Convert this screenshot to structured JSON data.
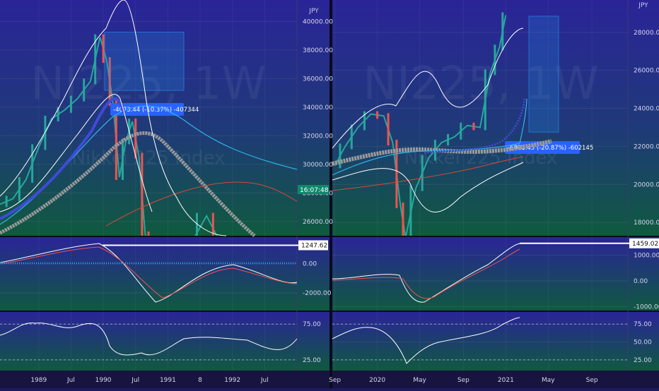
{
  "colors": {
    "bg_top": "#2b2399",
    "bg_bottom": "#0f5a3f",
    "candle_up": "#26a69a",
    "candle_down": "#ef5350",
    "bollinger": "#ffffff",
    "ma_blue": "#3f4bd6",
    "ma_gray": "#9a9a9a",
    "ma_red": "#d9463b",
    "ma_cyan": "#2fb3e6",
    "macd_hist": "#2196f3",
    "rsi_line": "#ffffff",
    "rsi_over": "#f44336",
    "rsi_under": "#4caf50",
    "label_bg": "#2962ff",
    "time_label_bg": "#0c8a6b"
  },
  "watermark": {
    "left": "NI225, 1W",
    "left_sub": "Nikkei 225 Index",
    "right": "NI225, 1W",
    "right_sub": "Nikkei 225 Index"
  },
  "chart_data": [
    {
      "type": "line",
      "panel": "left-price",
      "currency_label": "JPY",
      "ylim": [
        25000,
        41500
      ],
      "y_ticks": [
        "40000.00",
        "38000.00",
        "36000.00",
        "34000.00",
        "32000.00",
        "30000.00",
        "28000.00",
        "26000.00"
      ],
      "y_tick_values": [
        40000,
        38000,
        36000,
        34000,
        32000,
        30000,
        28000,
        26000
      ],
      "x_ticks": [
        "1989",
        "Jul",
        "1990",
        "Jul",
        "1991",
        "8",
        "1992",
        "Jul"
      ],
      "x_tick_values": [
        1989.0,
        1989.5,
        1990.0,
        1990.5,
        1991.0,
        1991.5,
        1992.0,
        1992.5
      ],
      "xlim": [
        1988.4,
        1993.0
      ],
      "series": [
        {
          "name": "",
          "x": [
            1988.4,
            1988.6,
            1988.8,
            1989.0,
            1989.2,
            1989.4,
            1989.6,
            1989.8,
            1989.95,
            1990.05,
            1990.15,
            1990.25,
            1990.35,
            1990.45,
            1990.55,
            1990.65,
            1990.75,
            1991.0,
            1991.3,
            1991.6,
            1991.8
          ],
          "values": [
            27200,
            27600,
            28900,
            31200,
            33200,
            33800,
            34600,
            35800,
            38900,
            37300,
            34300,
            29100,
            31600,
            33000,
            30600,
            25100,
            23400,
            22600,
            24000,
            26400,
            24600
          ]
        }
      ],
      "annotation": {
        "text": "-4073.44 (-10.37%) -407344",
        "range_from": 39250,
        "range_to": 35170
      },
      "time_label": "16:07:48"
    },
    {
      "type": "line",
      "panel": "right-price",
      "currency_label": "JPY",
      "ylim": [
        17300,
        29700
      ],
      "y_ticks": [
        "28000.00",
        "26000.00",
        "24000.00",
        "22000.00",
        "20000.00",
        "18000.00"
      ],
      "y_tick_values": [
        28000,
        26000,
        24000,
        22000,
        20000,
        18000
      ],
      "x_ticks": [
        "Sep",
        "2020",
        "May",
        "Sep",
        "2021",
        "May",
        "Sep"
      ],
      "x_tick_values": [
        2019.67,
        2020.0,
        2020.33,
        2020.67,
        2021.0,
        2021.33,
        2021.67
      ],
      "xlim": [
        2019.65,
        2021.95
      ],
      "series": [
        {
          "name": "",
          "x": [
            2019.67,
            2019.75,
            2019.85,
            2019.95,
            2020.05,
            2020.12,
            2020.18,
            2020.22,
            2020.3,
            2020.4,
            2020.5,
            2020.6,
            2020.7,
            2020.8,
            2020.88,
            2020.95,
            2021.0
          ],
          "values": [
            21000,
            22000,
            23000,
            23700,
            23600,
            22200,
            18900,
            17200,
            19800,
            21400,
            22200,
            22500,
            23100,
            23000,
            25900,
            27200,
            28900
          ]
        }
      ],
      "annotation": {
        "text": "-6021.45 (-20.87%) -602145",
        "range_from": 28850,
        "range_to": 22750
      }
    },
    {
      "type": "line",
      "panel": "left-macd",
      "y_ticks": [
        "0.00",
        "-2000.00"
      ],
      "y_tick_values": [
        0,
        -2000
      ],
      "ylim": [
        -3200,
        1800
      ],
      "level_label": "1247.62",
      "level_value": 1247.62
    },
    {
      "type": "line",
      "panel": "right-macd",
      "y_ticks": [
        "1000.00",
        "0.00",
        "-1000.00"
      ],
      "y_tick_values": [
        1000,
        0,
        -1000
      ],
      "ylim": [
        -1150,
        1700
      ],
      "level_label": "1459.02",
      "level_value": 1459.02
    },
    {
      "type": "line",
      "panel": "left-rsi",
      "y_ticks": [
        "75.00",
        "25.00"
      ],
      "y_tick_values": [
        75,
        25
      ],
      "ylim": [
        10,
        92
      ]
    },
    {
      "type": "line",
      "panel": "right-rsi",
      "y_ticks": [
        "75.00",
        "50.00",
        "25.00"
      ],
      "y_tick_values": [
        75,
        50,
        25
      ],
      "ylim": [
        10,
        92
      ]
    }
  ]
}
